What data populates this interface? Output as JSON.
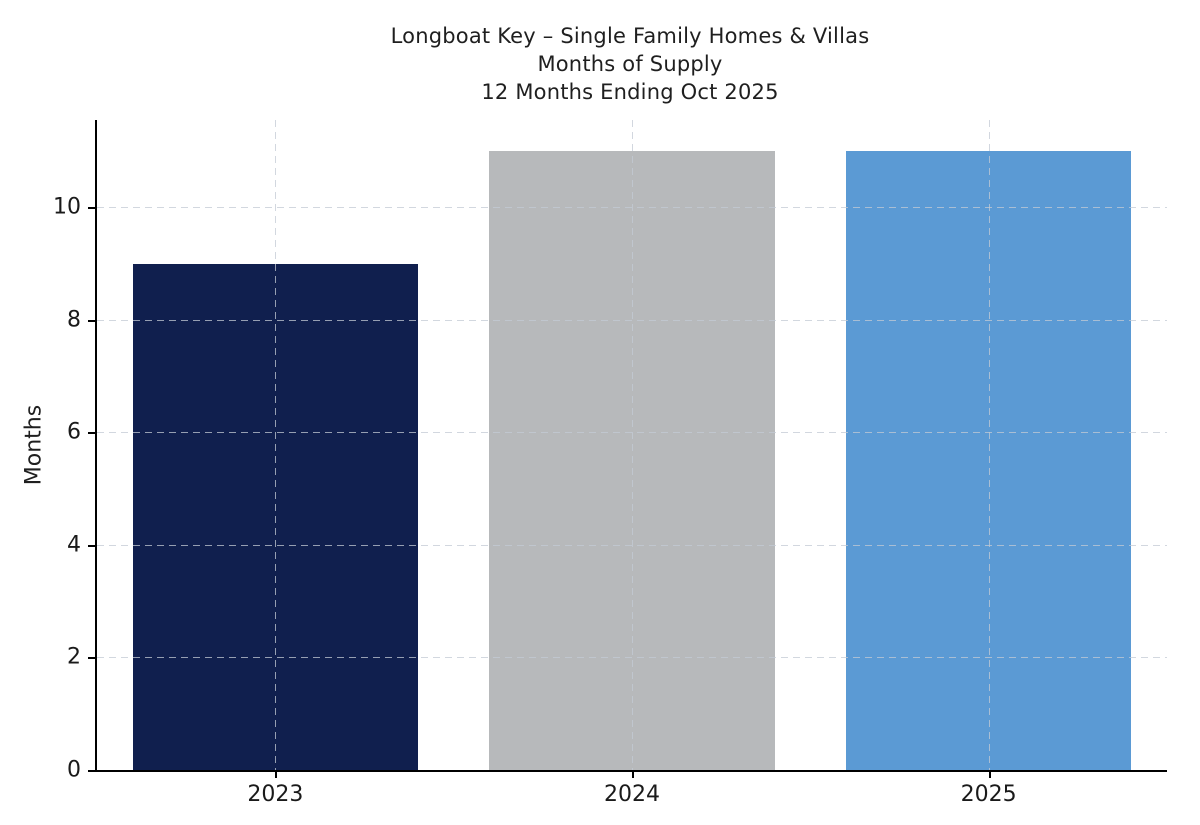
{
  "chart_data": {
    "type": "bar",
    "title_lines": [
      "Longboat Key – Single Family Homes & Villas",
      "Months of Supply",
      "12 Months Ending Oct 2025"
    ],
    "ylabel": "Months",
    "xlabel": "",
    "categories": [
      "2023",
      "2024",
      "2025"
    ],
    "values": [
      9,
      11,
      11
    ],
    "bar_colors": [
      "#101f4e",
      "#b7b9bb",
      "#5b9ad4"
    ],
    "yticks": [
      0,
      2,
      4,
      6,
      8,
      10
    ],
    "ylim": [
      0,
      11.55
    ],
    "bar_width_fraction": 0.8,
    "grid": "dashed horizontal and vertical gridlines",
    "legend": "none"
  }
}
